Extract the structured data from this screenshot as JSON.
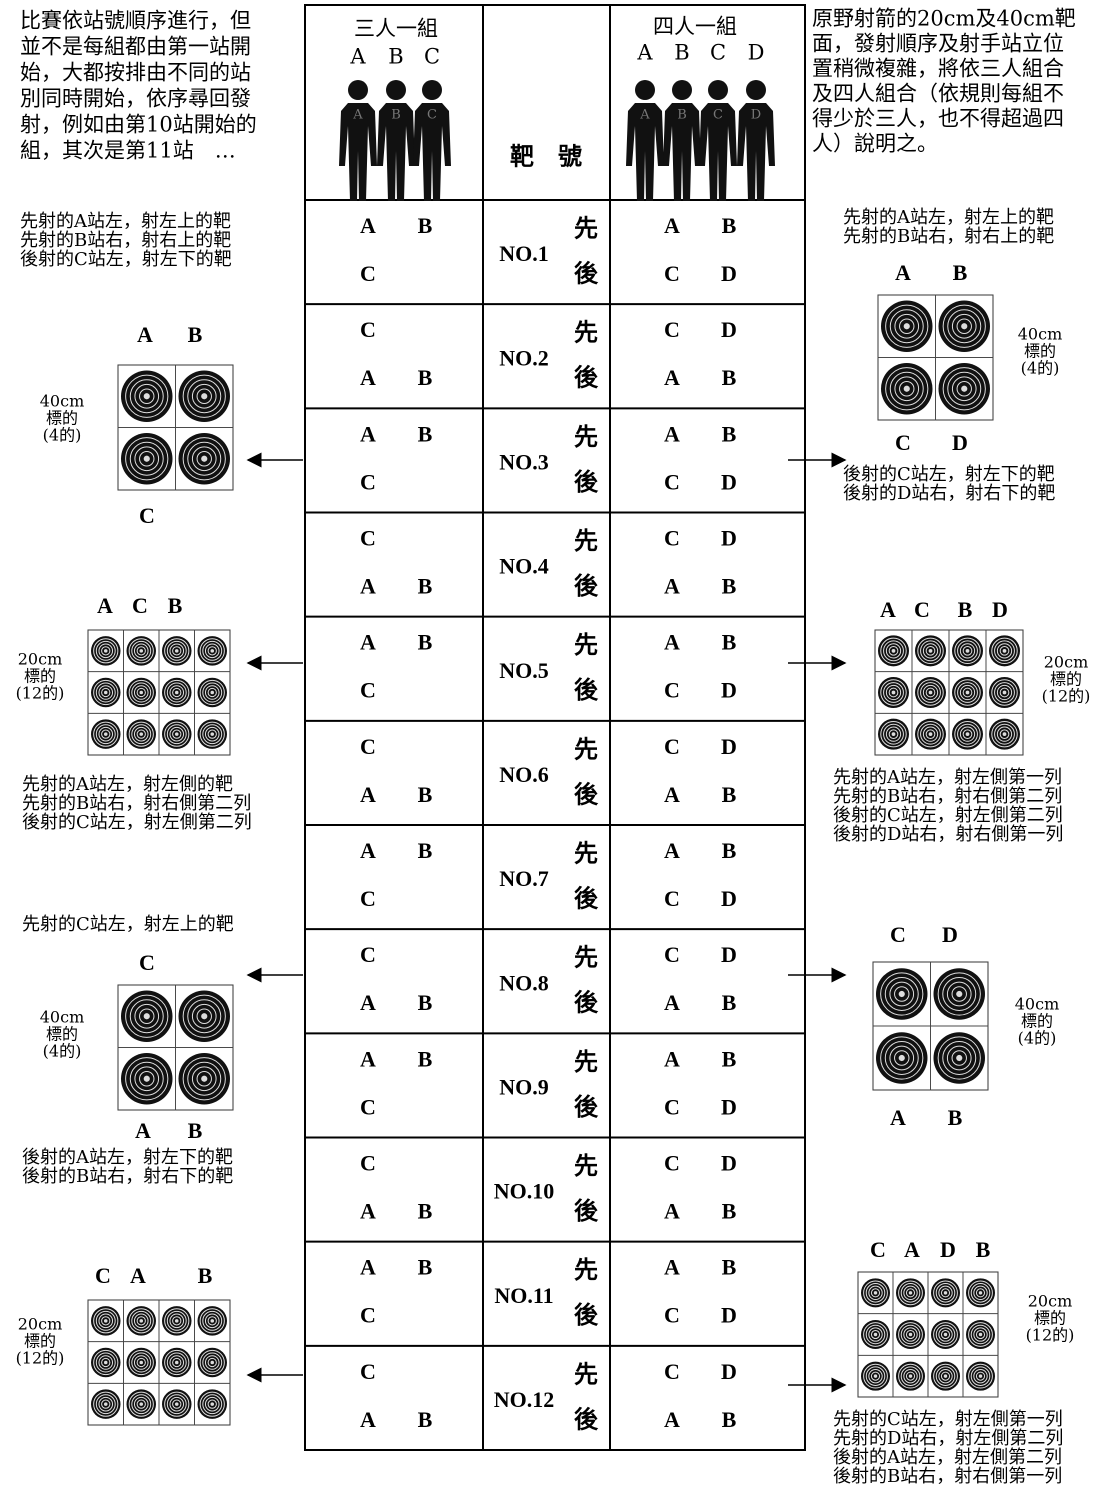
{
  "left_intro": [
    "比賽依站號順序進行，但",
    "並不是每組都由第一站開",
    "始，大都按排由不同的站",
    "別同時開始，依序尋回發",
    "射，例如由第10站開始的",
    "組，其次是第11站　…"
  ],
  "right_intro": [
    "原野射箭的20cm及40cm靶",
    "面，發射順序及射手站立位",
    "置稍微複雜，將依三人組合",
    "及四人組合（依規則每組不",
    "得少於三人，也不得超過四",
    "人）說明之。"
  ],
  "table": {
    "header": {
      "three": {
        "title": "三人一組",
        "letters": [
          "A",
          "B",
          "C"
        ]
      },
      "target": "靶　號",
      "four": {
        "title": "四人一組",
        "letters": [
          "A",
          "B",
          "C",
          "D"
        ]
      }
    },
    "rows": [
      {
        "number": "NO.1",
        "first": "先",
        "second": "後",
        "three": {
          "top": [
            "A",
            "B"
          ],
          "bottom": [
            "C"
          ]
        },
        "four": {
          "top": [
            "A",
            "B"
          ],
          "bottom": [
            "C",
            "D"
          ]
        }
      },
      {
        "number": "NO.2",
        "first": "先",
        "second": "後",
        "three": {
          "top": [
            "C"
          ],
          "bottom": [
            "A",
            "B"
          ]
        },
        "four": {
          "top": [
            "C",
            "D"
          ],
          "bottom": [
            "A",
            "B"
          ]
        }
      },
      {
        "number": "NO.3",
        "first": "先",
        "second": "後",
        "three": {
          "top": [
            "A",
            "B"
          ],
          "bottom": [
            "C"
          ]
        },
        "four": {
          "top": [
            "A",
            "B"
          ],
          "bottom": [
            "C",
            "D"
          ]
        }
      },
      {
        "number": "NO.4",
        "first": "先",
        "second": "後",
        "three": {
          "top": [
            "C"
          ],
          "bottom": [
            "A",
            "B"
          ]
        },
        "four": {
          "top": [
            "C",
            "D"
          ],
          "bottom": [
            "A",
            "B"
          ]
        }
      },
      {
        "number": "NO.5",
        "first": "先",
        "second": "後",
        "three": {
          "top": [
            "A",
            "B"
          ],
          "bottom": [
            "C"
          ]
        },
        "four": {
          "top": [
            "A",
            "B"
          ],
          "bottom": [
            "C",
            "D"
          ]
        }
      },
      {
        "number": "NO.6",
        "first": "先",
        "second": "後",
        "three": {
          "top": [
            "C"
          ],
          "bottom": [
            "A",
            "B"
          ]
        },
        "four": {
          "top": [
            "C",
            "D"
          ],
          "bottom": [
            "A",
            "B"
          ]
        }
      },
      {
        "number": "NO.7",
        "first": "先",
        "second": "後",
        "three": {
          "top": [
            "A",
            "B"
          ],
          "bottom": [
            "C"
          ]
        },
        "four": {
          "top": [
            "A",
            "B"
          ],
          "bottom": [
            "C",
            "D"
          ]
        }
      },
      {
        "number": "NO.8",
        "first": "先",
        "second": "後",
        "three": {
          "top": [
            "C"
          ],
          "bottom": [
            "A",
            "B"
          ]
        },
        "four": {
          "top": [
            "C",
            "D"
          ],
          "bottom": [
            "A",
            "B"
          ]
        }
      },
      {
        "number": "NO.9",
        "first": "先",
        "second": "後",
        "three": {
          "top": [
            "A",
            "B"
          ],
          "bottom": [
            "C"
          ]
        },
        "four": {
          "top": [
            "A",
            "B"
          ],
          "bottom": [
            "C",
            "D"
          ]
        }
      },
      {
        "number": "NO.10",
        "first": "先",
        "second": "後",
        "three": {
          "top": [
            "C"
          ],
          "bottom": [
            "A",
            "B"
          ]
        },
        "four": {
          "top": [
            "C",
            "D"
          ],
          "bottom": [
            "A",
            "B"
          ]
        }
      },
      {
        "number": "NO.11",
        "first": "先",
        "second": "後",
        "three": {
          "top": [
            "A",
            "B"
          ],
          "bottom": [
            "C"
          ]
        },
        "four": {
          "top": [
            "A",
            "B"
          ],
          "bottom": [
            "C",
            "D"
          ]
        }
      },
      {
        "number": "NO.12",
        "first": "先",
        "second": "後",
        "three": {
          "top": [
            "C"
          ],
          "bottom": [
            "A",
            "B"
          ]
        },
        "four": {
          "top": [
            "C",
            "D"
          ],
          "bottom": [
            "A",
            "B"
          ]
        }
      }
    ]
  },
  "panels": [
    {
      "note_above": [
        "先射的A站左，射左上的靶",
        "先射的B站右，射右上的靶",
        "後射的C站左，射左下的靶"
      ],
      "top": [
        "A",
        "B"
      ],
      "bottom": [
        "C"
      ],
      "size": [
        "40cm",
        "標的",
        "(4的)"
      ]
    },
    {
      "top": [
        "A",
        "C",
        "B"
      ],
      "size": [
        "20cm",
        "標的",
        "(12的)"
      ],
      "note_below": [
        "先射的A站左，射左側的靶",
        "先射的B站右，射右側第二列",
        "後射的C站左，射左側第二列"
      ]
    },
    {
      "note_above": [
        "先射的C站左，射左上的靶"
      ],
      "top": [
        "C"
      ],
      "bottom": [
        "A",
        "B"
      ],
      "size": [
        "40cm",
        "標的",
        "(4的)"
      ],
      "note_below": [
        "後射的A站左，射左下的靶",
        "後射的B站右，射右下的靶"
      ]
    },
    {
      "top": [
        "C",
        "A",
        "B"
      ],
      "size": [
        "20cm",
        "標的",
        "(12的)"
      ]
    },
    {
      "note_above": [
        "先射的A站左，射左上的靶",
        "先射的B站右，射右上的靶"
      ],
      "top": [
        "A",
        "B"
      ],
      "bottom": [
        "C",
        "D"
      ],
      "size": [
        "40cm",
        "標的",
        "(4的)"
      ],
      "note_below": [
        "後射的C站左，射左下的靶",
        "後射的D站右，射右下的靶"
      ]
    },
    {
      "top": [
        "A",
        "C",
        "B",
        "D"
      ],
      "size": [
        "20cm",
        "標的",
        "(12的)"
      ],
      "note_below": [
        "先射的A站左，射左側第一列",
        "先射的B站右，射右側第二列",
        "後射的C站左，射左側第二列",
        "後射的D站右，射右側第一列"
      ]
    },
    {
      "top": [
        "C",
        "D"
      ],
      "bottom": [
        "A",
        "B"
      ],
      "size": [
        "40cm",
        "標的",
        "(4的)"
      ]
    },
    {
      "top": [
        "C",
        "A",
        "D",
        "B"
      ],
      "size": [
        "20cm",
        "標的",
        "(12的)"
      ],
      "note_below": [
        "先射的C站左，射左側第一列",
        "先射的D站右，射左側第二列",
        "後射的A站左，射左側第二列",
        "後射的B站右，射右側第一列"
      ]
    }
  ]
}
